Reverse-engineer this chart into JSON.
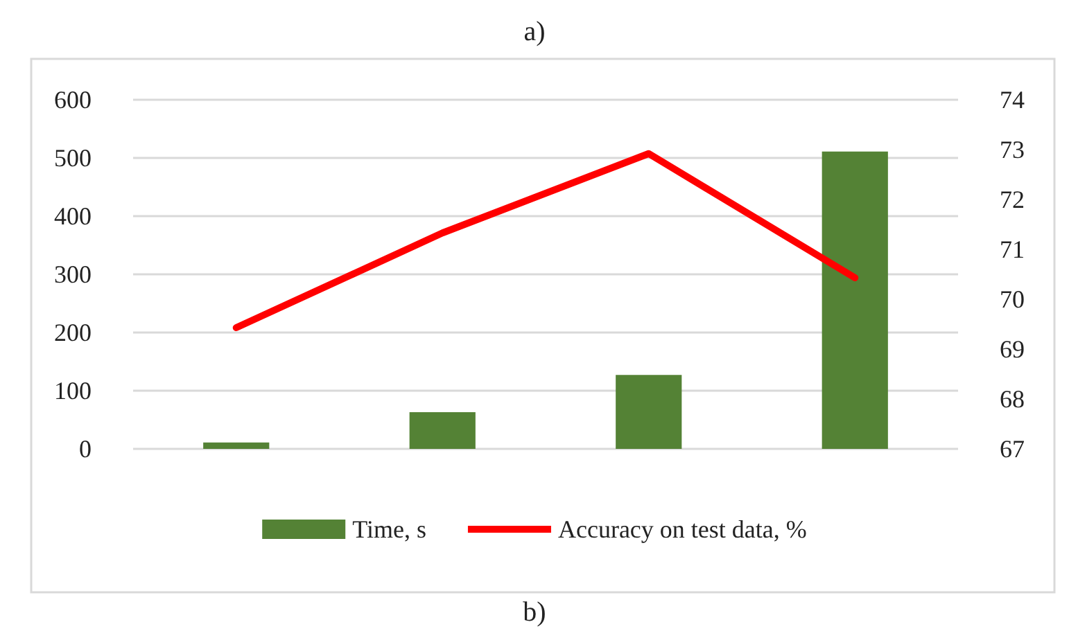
{
  "chart_data": {
    "type": "bar",
    "title": "a)",
    "annotations": [
      "b)"
    ],
    "categories": [
      null,
      null,
      null,
      null
    ],
    "series": [
      {
        "name": "Time, s",
        "color": "#548235",
        "values": [
          11,
          63,
          127,
          511
        ]
      },
      {
        "name": "Accuracy on test data, %",
        "type": "line",
        "axis": "y2",
        "color": "#ff0000",
        "values": [
          69.43,
          71.33,
          72.92,
          70.43
        ]
      }
    ],
    "ylim": [
      0,
      600
    ],
    "yticks": [
      0,
      100,
      200,
      300,
      400,
      500,
      600
    ],
    "y2lim": [
      67,
      74
    ],
    "y2ticks": [
      67,
      68,
      69,
      70,
      71,
      72,
      73,
      74
    ],
    "grid": "y",
    "legend": "bottom",
    "marker": "none"
  }
}
